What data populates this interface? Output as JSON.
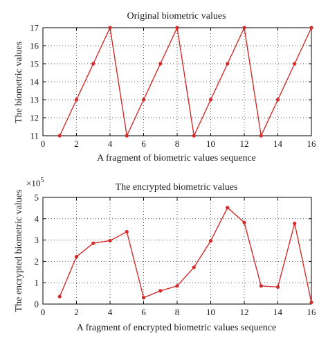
{
  "colors": {
    "series": "#d42a2a",
    "axis": "#000000",
    "grid": "#555555"
  },
  "chart_data": [
    {
      "type": "line",
      "title": "Original biometric values",
      "xlabel": "A fragment of biometric values sequence",
      "ylabel": "The biometric values",
      "xlim": [
        0,
        16
      ],
      "ylim": [
        11,
        17
      ],
      "xticks": [
        0,
        2,
        4,
        6,
        8,
        10,
        12,
        14,
        16
      ],
      "yticks": [
        11,
        12,
        13,
        14,
        15,
        16,
        17
      ],
      "grid": true,
      "x": [
        1,
        2,
        3,
        4,
        5,
        6,
        7,
        8,
        9,
        10,
        11,
        12,
        13,
        14,
        15,
        16
      ],
      "series": [
        {
          "values": [
            11,
            13,
            15,
            17,
            11,
            13,
            15,
            17,
            11,
            13,
            15,
            17,
            11,
            13,
            15,
            17
          ]
        }
      ]
    },
    {
      "type": "line",
      "title": "The encrypted biometric values",
      "xlabel": "A fragment of encrypted biometric values sequence",
      "ylabel": "The encrypted biometric values",
      "multiplier": "×10",
      "multiplier_exponent": "5",
      "xlim": [
        0,
        16
      ],
      "ylim": [
        0,
        5
      ],
      "xticks": [
        0,
        2,
        4,
        6,
        8,
        10,
        12,
        14,
        16
      ],
      "yticks": [
        0,
        1,
        2,
        3,
        4,
        5
      ],
      "grid": true,
      "x": [
        1,
        2,
        3,
        4,
        5,
        6,
        7,
        8,
        9,
        10,
        11,
        12,
        13,
        14,
        15,
        16
      ],
      "series": [
        {
          "values": [
            0.35,
            2.22,
            2.85,
            2.97,
            3.39,
            0.3,
            0.62,
            0.85,
            1.72,
            2.96,
            4.52,
            3.82,
            0.85,
            0.8,
            3.78,
            0.08
          ]
        }
      ]
    }
  ]
}
